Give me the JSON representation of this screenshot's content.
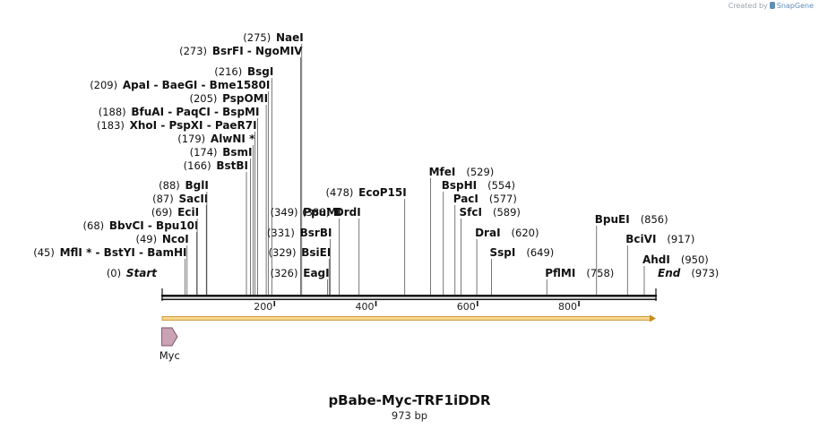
{
  "credit": {
    "prefix": "Created by",
    "brand": "SnapGene"
  },
  "sequence": {
    "name": "pBabe-Myc-TRF1iDDR",
    "size_label": "973 bp",
    "length_bp": 973
  },
  "colors": {
    "backbone": "#1a1a1a",
    "orf_fill": "#f5d68e",
    "orf_border": "#c88a1e",
    "feature": "#c9a2b4",
    "feature_border": "#7a4d63"
  },
  "ruler_ticks": [
    {
      "bp": 200,
      "label": "200"
    },
    {
      "bp": 400,
      "label": "400"
    },
    {
      "bp": 600,
      "label": "600"
    },
    {
      "bp": 800,
      "label": "800"
    }
  ],
  "feature": {
    "name": "Myc",
    "start_bp": 1,
    "end_bp": 30
  },
  "sites": [
    {
      "pos": "(0)",
      "name": "Start",
      "bp": 0,
      "italic": true,
      "pos_first": true
    },
    {
      "pos": "(45)",
      "name": "MflI * - BstYI - BamHI",
      "bp": 45,
      "pos_first": true
    },
    {
      "pos": "(49)",
      "name": "NcoI",
      "bp": 49,
      "pos_first": true
    },
    {
      "pos": "(68)",
      "name": "BbvCI - Bpu10I",
      "bp": 68,
      "pos_first": true
    },
    {
      "pos": "(69)",
      "name": "EciI",
      "bp": 69,
      "pos_first": true
    },
    {
      "pos": "(87)",
      "name": "SacII",
      "bp": 87,
      "pos_first": true
    },
    {
      "pos": "(88)",
      "name": "BglI",
      "bp": 88,
      "pos_first": true
    },
    {
      "pos": "(166)",
      "name": "BstBI",
      "bp": 166,
      "pos_first": true
    },
    {
      "pos": "(174)",
      "name": "BsmI",
      "bp": 174,
      "pos_first": true
    },
    {
      "pos": "(179)",
      "name": "AlwNI *",
      "bp": 179,
      "pos_first": true
    },
    {
      "pos": "(183)",
      "name": "XhoI - PspXI - PaeR7I",
      "bp": 183,
      "pos_first": true
    },
    {
      "pos": "(188)",
      "name": "BfuAI - PaqCI - BspMI",
      "bp": 188,
      "pos_first": true
    },
    {
      "pos": "(205)",
      "name": "PspOMI",
      "bp": 205,
      "pos_first": true
    },
    {
      "pos": "(209)",
      "name": "ApaI - BaeGI - Bme1580I",
      "bp": 209,
      "pos_first": true
    },
    {
      "pos": "(216)",
      "name": "BsgI",
      "bp": 216,
      "pos_first": true
    },
    {
      "pos": "(273)",
      "name": "BsrFI - NgoMIV",
      "bp": 273,
      "pos_first": true
    },
    {
      "pos": "(275)",
      "name": "NaeI",
      "bp": 275,
      "pos_first": true
    },
    {
      "pos": "(326)",
      "name": "EagI",
      "bp": 326,
      "pos_first": true
    },
    {
      "pos": "(329)",
      "name": "BsiEI",
      "bp": 329,
      "pos_first": true
    },
    {
      "pos": "(331)",
      "name": "BsrBI",
      "bp": 331,
      "pos_first": true
    },
    {
      "pos": "(349)",
      "name": "PpuMI",
      "bp": 349,
      "pos_first": true
    },
    {
      "pos": "(388)",
      "name": "DrdI",
      "bp": 388,
      "pos_first": true
    },
    {
      "pos": "(478)",
      "name": "EcoP15I",
      "bp": 478,
      "pos_first": true
    },
    {
      "pos": "(529)",
      "name": "MfeI",
      "bp": 529,
      "pos_first": false
    },
    {
      "pos": "(554)",
      "name": "BspHI",
      "bp": 554,
      "pos_first": false
    },
    {
      "pos": "(577)",
      "name": "PacI",
      "bp": 577,
      "pos_first": false
    },
    {
      "pos": "(589)",
      "name": "SfcI",
      "bp": 589,
      "pos_first": false
    },
    {
      "pos": "(620)",
      "name": "DraI",
      "bp": 620,
      "pos_first": false
    },
    {
      "pos": "(649)",
      "name": "SspI",
      "bp": 649,
      "pos_first": false
    },
    {
      "pos": "(758)",
      "name": "PflMI",
      "bp": 758,
      "pos_first": false
    },
    {
      "pos": "(856)",
      "name": "BpuEI",
      "bp": 856,
      "pos_first": false
    },
    {
      "pos": "(917)",
      "name": "BciVI",
      "bp": 917,
      "pos_first": false
    },
    {
      "pos": "(950)",
      "name": "AhdI",
      "bp": 950,
      "pos_first": false
    },
    {
      "pos": "(973)",
      "name": "End",
      "bp": 973,
      "italic": true,
      "pos_first": false
    }
  ]
}
